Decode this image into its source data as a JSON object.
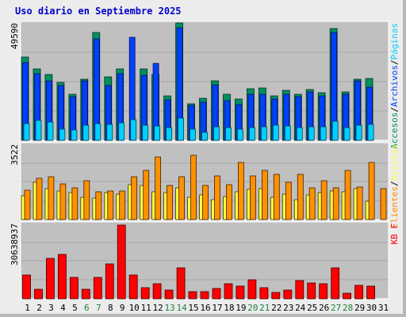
{
  "title": "Uso diario en Septiembre 2025",
  "colors": {
    "background": "#ececec",
    "plot_bg": "#c0c0c0",
    "visitas": "#009060",
    "paginas": "#0040ff",
    "solicitudes": "#00d0ff",
    "clientes": "#ff9000",
    "archivos_alt": "#ffff40",
    "kb": "#ff0000",
    "weekend_day": "#208040",
    "weekday": "#000000"
  },
  "chart_data": [
    {
      "type": "bar",
      "panel": "accesses",
      "ymax_label": "49590",
      "ylim": [
        0,
        49590
      ],
      "right_label": [
        {
          "text": "Accesos",
          "color": "#009060"
        },
        {
          "text": "/",
          "color": "#000000"
        },
        {
          "text": "Archivos",
          "color": "#0040ff"
        },
        {
          "text": "/",
          "color": "#000000"
        },
        {
          "text": "Páginas",
          "color": "#00d0ff"
        }
      ],
      "categories": [
        "1",
        "2",
        "3",
        "4",
        "5",
        "6",
        "7",
        "8",
        "9",
        "10",
        "11",
        "12",
        "13",
        "14",
        "15",
        "16",
        "17",
        "18",
        "19",
        "20",
        "21",
        "22",
        "23",
        "24",
        "25",
        "26",
        "27",
        "28",
        "29",
        "30",
        "31"
      ],
      "weekend_days": [
        6,
        7,
        13,
        14,
        20,
        21,
        27,
        28
      ],
      "series": [
        {
          "name": "Accesos",
          "values": [
            35200,
            30200,
            27700,
            24300,
            19300,
            25900,
            45600,
            26900,
            30300,
            0,
            30300,
            27800,
            18800,
            49590,
            15300,
            17600,
            25200,
            19300,
            17300,
            21800,
            22000,
            18800,
            21200,
            19600,
            21500,
            20000,
            47200,
            20600,
            25900,
            26300,
            0
          ]
        },
        {
          "name": "Archivos",
          "values": [
            33000,
            28000,
            25000,
            23000,
            18500,
            25000,
            43000,
            23000,
            28000,
            43700,
            27500,
            32500,
            17000,
            47600,
            14800,
            16200,
            23500,
            16700,
            15100,
            19400,
            19500,
            17500,
            19500,
            18400,
            20600,
            18800,
            45600,
            19400,
            25000,
            22500,
            0
          ]
        },
        {
          "name": "Páginas",
          "values": [
            7000,
            8500,
            7800,
            4800,
            4500,
            6200,
            7100,
            6700,
            7400,
            8700,
            6200,
            5900,
            5200,
            9500,
            4700,
            3300,
            5600,
            5300,
            4600,
            5500,
            5800,
            6200,
            6100,
            5500,
            5700,
            5800,
            8000,
            5500,
            6200,
            6700,
            0
          ]
        }
      ]
    },
    {
      "type": "bar",
      "panel": "visitors",
      "ymax_label": "3522",
      "ylim": [
        0,
        3522
      ],
      "right_label": [
        {
          "text": "Clientes",
          "color": "#ff9000"
        },
        {
          "text": "/",
          "color": "#000000"
        },
        {
          "text": "Visitas",
          "color": "#ffff40"
        }
      ],
      "categories": [
        "1",
        "2",
        "3",
        "4",
        "5",
        "6",
        "7",
        "8",
        "9",
        "10",
        "11",
        "12",
        "13",
        "14",
        "15",
        "16",
        "17",
        "18",
        "19",
        "20",
        "21",
        "22",
        "23",
        "24",
        "25",
        "26",
        "27",
        "28",
        "29",
        "30",
        "31"
      ],
      "series": [
        {
          "name": "Visitas",
          "values": [
            1100,
            1730,
            1430,
            1350,
            1250,
            1050,
            1000,
            1250,
            1200,
            1630,
            1600,
            1300,
            1250,
            1500,
            1020,
            1150,
            920,
            1080,
            1300,
            1400,
            1450,
            1050,
            1170,
            920,
            1150,
            1250,
            1350,
            1300,
            1450,
            870,
            0
          ]
        },
        {
          "name": "Clientes",
          "values": [
            1390,
            1940,
            2000,
            1650,
            1500,
            1800,
            1300,
            1320,
            1320,
            2000,
            2300,
            2930,
            1600,
            2000,
            3000,
            1600,
            2050,
            1620,
            2670,
            2030,
            2310,
            2110,
            1730,
            2110,
            1500,
            1820,
            1490,
            2300,
            1530,
            2660,
            1460
          ]
        }
      ]
    },
    {
      "type": "bar",
      "panel": "kb",
      "ymax_label": "30638937",
      "ylim": [
        0,
        30638937
      ],
      "right_label": [
        {
          "text": "KB F",
          "color": "#ff0000"
        }
      ],
      "categories": [
        "1",
        "2",
        "3",
        "4",
        "5",
        "6",
        "7",
        "8",
        "9",
        "10",
        "11",
        "12",
        "13",
        "14",
        "15",
        "16",
        "17",
        "18",
        "19",
        "20",
        "21",
        "22",
        "23",
        "24",
        "25",
        "26",
        "27",
        "28",
        "29",
        "30",
        "31"
      ],
      "series": [
        {
          "name": "KB F",
          "values": [
            9600,
            3800,
            16600,
            18100,
            8800,
            3800,
            8800,
            14300,
            29900,
            9800,
            4500,
            6000,
            3600,
            12600,
            2800,
            3000,
            4300,
            6100,
            5100,
            7800,
            4600,
            2500,
            3700,
            7300,
            6300,
            6100,
            12600,
            2300,
            5400,
            5100,
            0
          ]
        }
      ]
    }
  ]
}
